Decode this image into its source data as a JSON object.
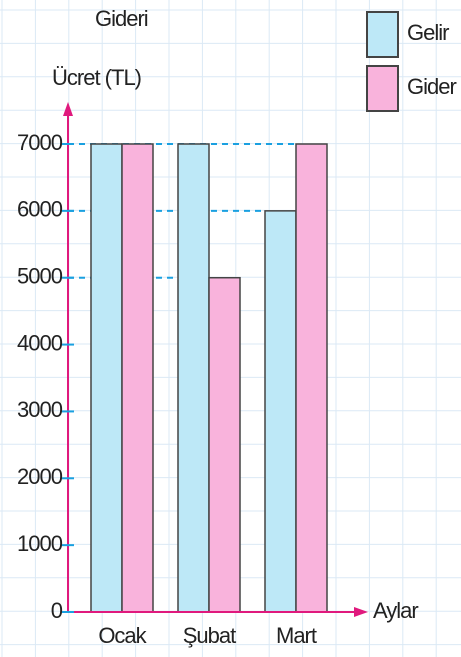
{
  "chart_data": {
    "type": "bar",
    "title": "Gideri",
    "y_label": "Ücret (TL)",
    "x_label": "Aylar",
    "categories": [
      "Ocak",
      "Şubat",
      "Mart"
    ],
    "series": [
      {
        "name": "Gelir",
        "color": "#bde8f7",
        "values": [
          7000,
          7000,
          6000
        ]
      },
      {
        "name": "Gider",
        "color": "#f9b3dc",
        "values": [
          7000,
          5000,
          7000
        ]
      }
    ],
    "ylim": [
      0,
      7000
    ],
    "yticks": [
      0,
      1000,
      2000,
      3000,
      4000,
      5000,
      6000,
      7000
    ]
  }
}
